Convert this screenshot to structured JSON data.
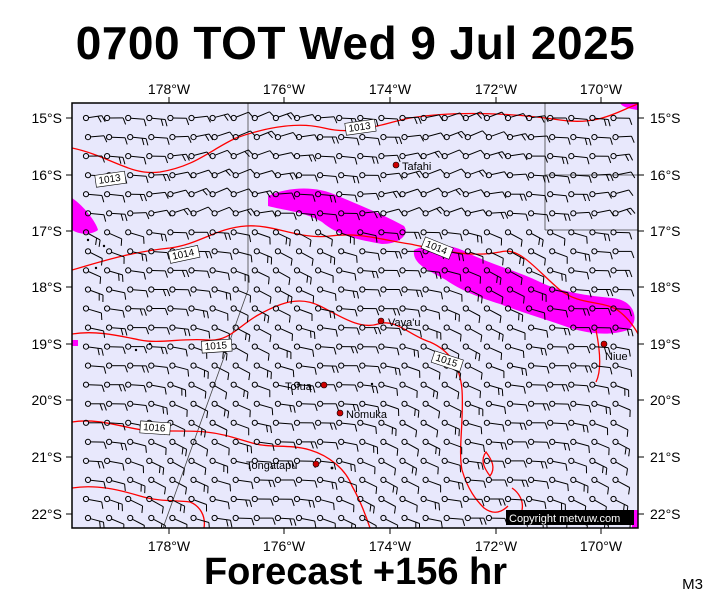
{
  "header": {
    "title": "0700 TOT Wed 9 Jul 2025"
  },
  "footer": {
    "forecast": "Forecast +156 hr",
    "model_code": "M3"
  },
  "copyright": "Copyright metvuw.com",
  "colors": {
    "background": "#e8e8fc",
    "isobar": "#ff0000",
    "precipitation": "#ff00ff",
    "wind_barb": "#000000"
  },
  "map": {
    "lon_labels": [
      "178°W",
      "176°W",
      "174°W",
      "172°W",
      "170°W"
    ],
    "lat_labels": [
      "15°S",
      "16°S",
      "17°S",
      "18°S",
      "19°S",
      "20°S",
      "21°S",
      "22°S"
    ],
    "isobar_labels": [
      "1013",
      "1013",
      "1014",
      "1014",
      "1015",
      "1015",
      "1016"
    ],
    "places": [
      "Tafahi",
      "Vava'u",
      "Tofua",
      "Nomuka",
      "Tongatapu",
      "Niue"
    ]
  }
}
